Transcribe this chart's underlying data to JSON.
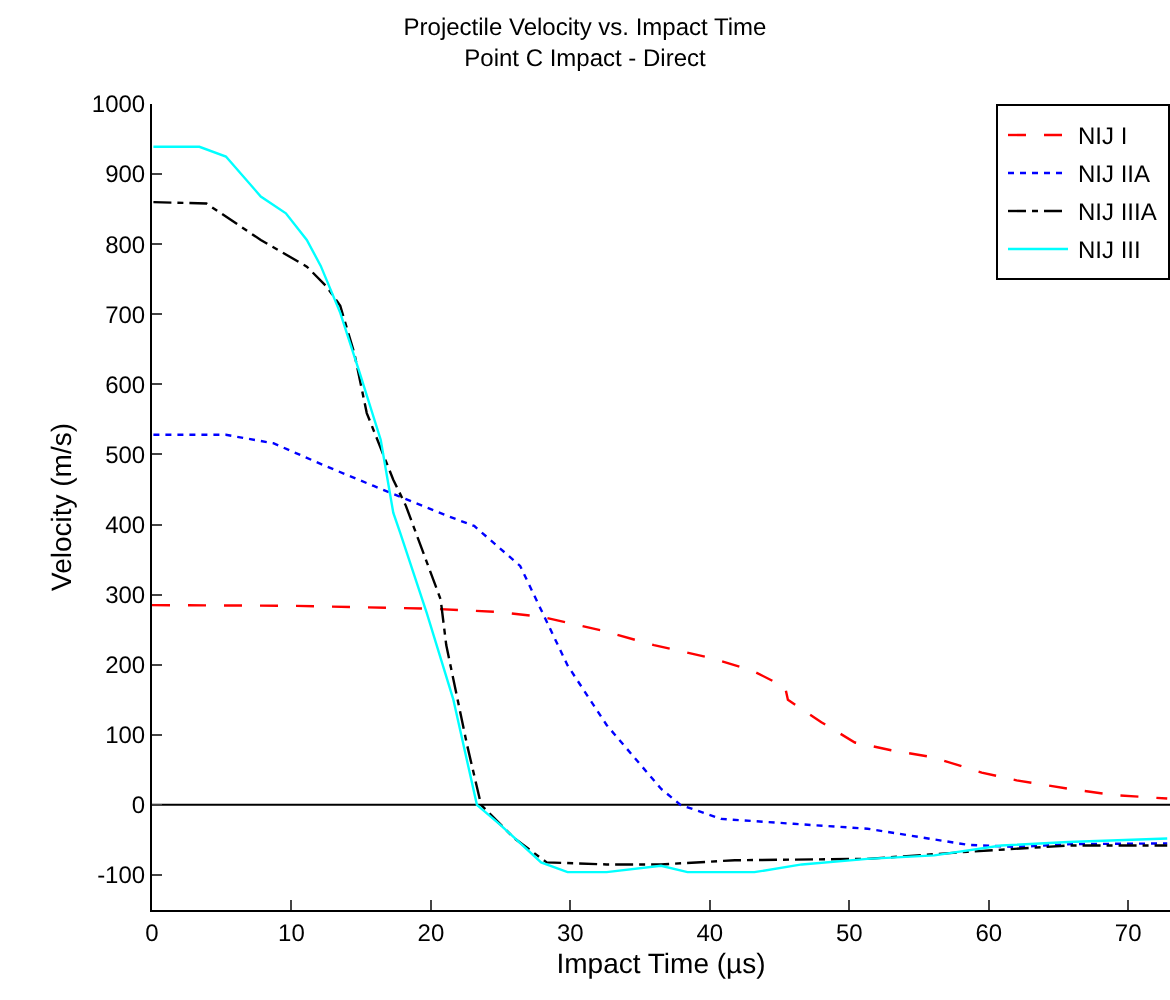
{
  "chart_data": {
    "type": "line",
    "title": "Projectile Velocity vs. Impact Time\nPoint C Impact - Direct",
    "xlabel": "Impact Time (µs)",
    "ylabel": "Velocity (m/s)",
    "xlim": [
      0,
      73
    ],
    "xticks": [
      0,
      10,
      20,
      30,
      40,
      50,
      60,
      70
    ],
    "ylim": [
      -150,
      1000
    ],
    "yticks": [
      -100,
      0,
      100,
      200,
      300,
      400,
      500,
      600,
      700,
      800,
      900,
      1000
    ],
    "grid": false,
    "legend": "top right",
    "ref_lines": [
      {
        "axis": "y",
        "value": 0,
        "color": "#000000",
        "line_style": "solid"
      }
    ],
    "series": [
      {
        "name": "NIJ I",
        "color": "#ff0000",
        "line_style": "dashed",
        "x": [
          0,
          10,
          20,
          25,
          28,
          32.2,
          36,
          40,
          43,
          45.4,
          45.6,
          48,
          50.4,
          53,
          56,
          59.5,
          62,
          65.7,
          69,
          72.8
        ],
        "values": [
          285,
          284,
          280,
          275,
          268,
          249,
          228,
          210,
          192,
          168,
          150,
          118,
          89,
          78,
          68,
          46,
          35,
          23,
          14,
          9
        ]
      },
      {
        "name": "NIJ IIA",
        "color": "#0000ff",
        "line_style": "dotted",
        "x": [
          0.1,
          5.3,
          8.7,
          12.5,
          15.9,
          21.1,
          23.1,
          26.4,
          29.8,
          32.6,
          36.5,
          37.9,
          40.8,
          46,
          51.3,
          58.5,
          62,
          66,
          72.8
        ],
        "values": [
          528,
          528,
          516,
          483,
          455,
          413,
          398,
          341,
          199,
          114,
          23,
          0,
          -20,
          -27,
          -34,
          -57,
          -60,
          -56,
          -55
        ]
      },
      {
        "name": "NIJ IIIA",
        "color": "#000000",
        "line_style": "dashdot",
        "x": [
          0.1,
          3.9,
          7.8,
          11.1,
          12.5,
          13.5,
          14.5,
          15.4,
          17.3,
          18.2,
          20.7,
          21.1,
          22.6,
          23.6,
          26,
          28.3,
          32.6,
          36.5,
          41.8,
          51.3,
          58.5,
          65.7,
          72.8
        ],
        "values": [
          860,
          858,
          806,
          768,
          740,
          712,
          645,
          559,
          464,
          427,
          293,
          228,
          85,
          0,
          -48,
          -82,
          -85,
          -85,
          -79,
          -77,
          -67,
          -58,
          -58
        ]
      },
      {
        "name": "NIJ III",
        "color": "#00ffff",
        "line_style": "solid",
        "x": [
          0.1,
          3.4,
          5.3,
          7.8,
          9.6,
          11.1,
          12.1,
          13.5,
          14.9,
          16.4,
          17.3,
          17.8,
          19.7,
          21.6,
          23.3,
          25,
          27.9,
          29.8,
          32.6,
          36.5,
          38.4,
          43.2,
          46.6,
          51.3,
          56.1,
          60.9,
          65.7,
          72.8
        ],
        "values": [
          939,
          939,
          925,
          868,
          844,
          806,
          769,
          702,
          616,
          521,
          417,
          388,
          274,
          151,
          0,
          -29,
          -82,
          -96,
          -96,
          -87,
          -96,
          -96,
          -85,
          -77,
          -72,
          -58,
          -53,
          -48
        ]
      }
    ]
  }
}
